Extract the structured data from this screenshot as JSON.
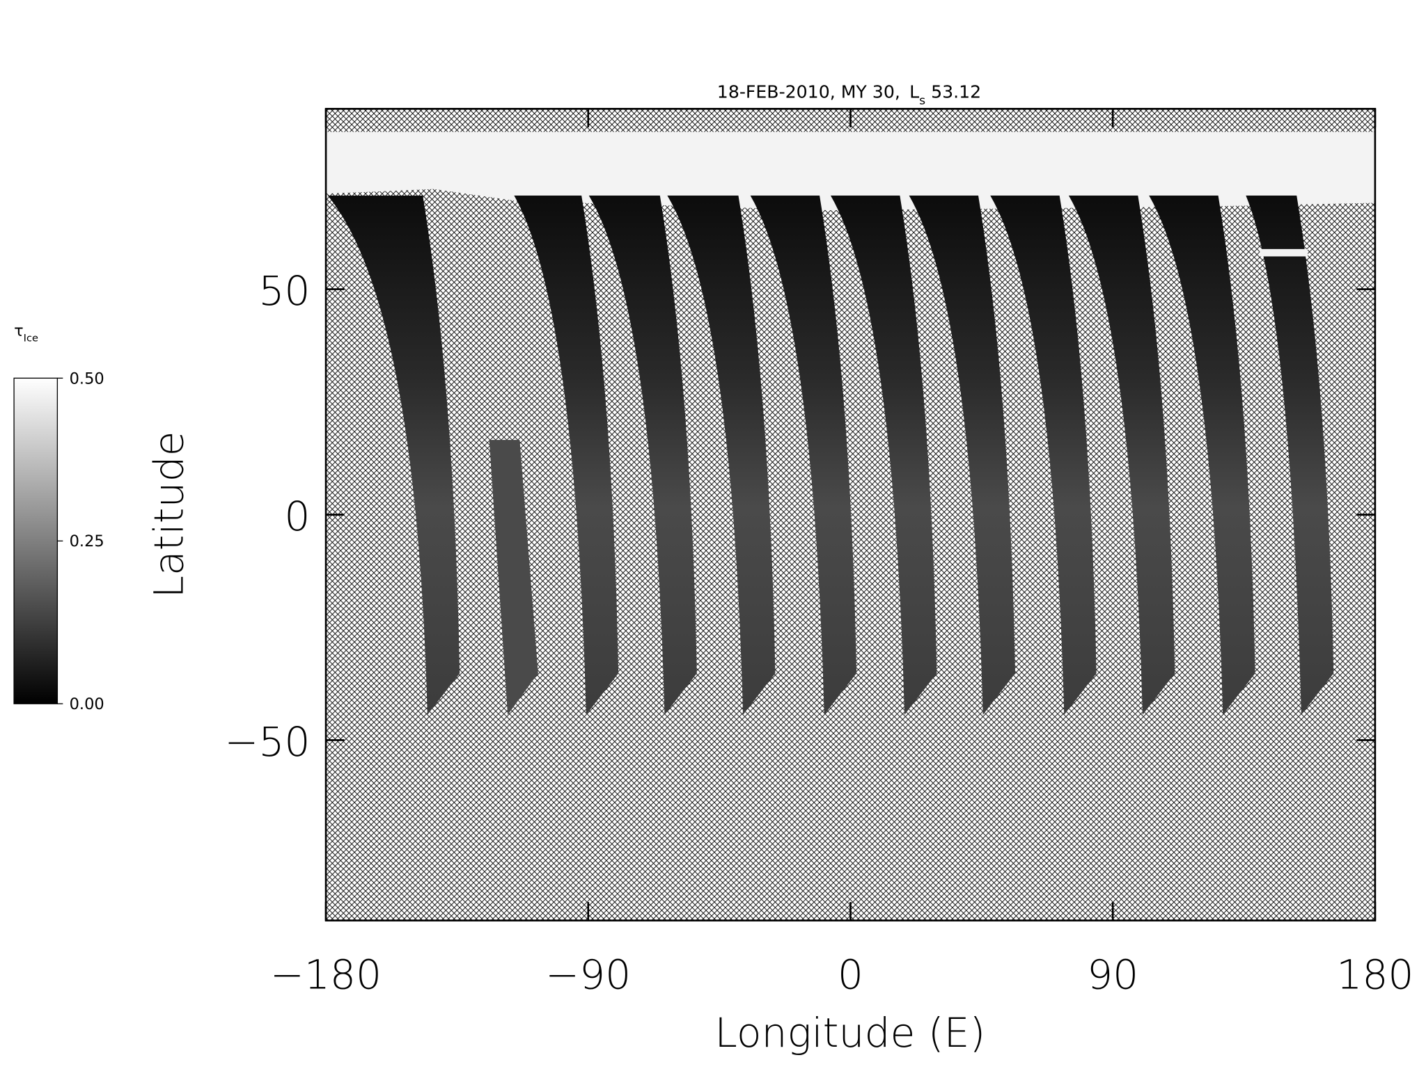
{
  "chart_data": {
    "type": "map",
    "title": {
      "text": "18-FEB-2010, MY 30,",
      "ls_symbol": "L",
      "ls_subscript": "s",
      "ls_value": 53.12
    },
    "x_label": "Longitude (E)",
    "y_label": "Latitude",
    "xlim": [
      -180,
      180
    ],
    "xticks": [
      {
        "value": -180,
        "label": "−180"
      },
      {
        "value": -90,
        "label": "−90"
      },
      0,
      90,
      180
    ],
    "ylim": [
      -90,
      90
    ],
    "yticks": [
      {
        "value": -50,
        "label": "−50"
      },
      0,
      50
    ],
    "colorbar": {
      "label": "τ",
      "label_subscript": "Ice",
      "lim": [
        0,
        0.5
      ],
      "ticks": [
        {
          "value": 0,
          "label": "0.00"
        },
        {
          "value": 0.25,
          "label": "0.25"
        },
        {
          "value": 0.5,
          "label": "0.50"
        }
      ]
    }
  }
}
